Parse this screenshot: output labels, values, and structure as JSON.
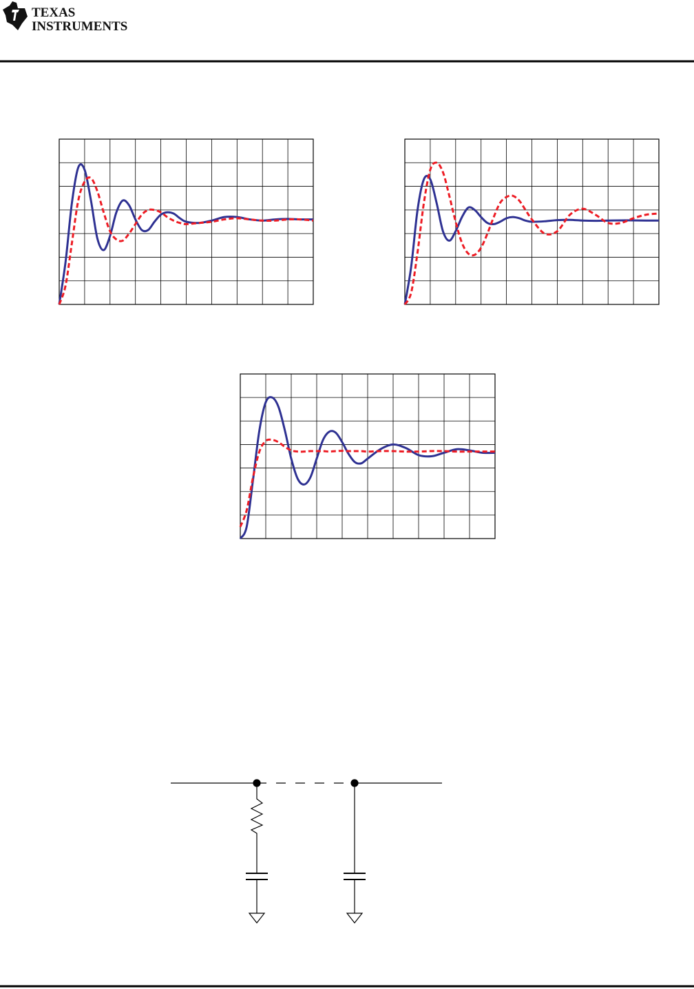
{
  "header": {
    "logo_line1": "TEXAS",
    "logo_line2": "INSTRUMENTS"
  },
  "chart_data": [
    {
      "type": "line",
      "xlim": [
        0,
        10
      ],
      "ylim": [
        0,
        7
      ],
      "xticks": [
        0,
        1,
        2,
        3,
        4,
        5,
        6,
        7,
        8,
        9,
        10
      ],
      "yticks": [
        0,
        1,
        2,
        3,
        4,
        5,
        6,
        7
      ],
      "grid": true,
      "x": [
        0,
        0.25,
        0.5,
        0.75,
        1,
        1.25,
        1.5,
        1.75,
        2,
        2.25,
        2.5,
        2.75,
        3,
        3.25,
        3.5,
        3.75,
        4,
        4.25,
        4.5,
        4.75,
        5,
        5.5,
        6,
        6.5,
        7,
        7.5,
        8,
        8.5,
        9,
        9.5,
        10
      ],
      "series": [
        {
          "color": "#2e3192",
          "style": "solid",
          "values": [
            0,
            1.8,
            4.3,
            5.8,
            5.7,
            4.4,
            2.8,
            2.3,
            2.9,
            3.9,
            4.4,
            4.2,
            3.6,
            3.15,
            3.15,
            3.5,
            3.8,
            3.9,
            3.85,
            3.65,
            3.5,
            3.45,
            3.55,
            3.7,
            3.7,
            3.6,
            3.55,
            3.6,
            3.62,
            3.6,
            3.6
          ]
        },
        {
          "color": "#ed1c24",
          "style": "dashed",
          "values": [
            0,
            0.8,
            2.6,
            4.4,
            5.2,
            5.35,
            4.8,
            3.9,
            3.1,
            2.75,
            2.7,
            3.0,
            3.4,
            3.8,
            4.0,
            4.0,
            3.9,
            3.7,
            3.55,
            3.45,
            3.4,
            3.45,
            3.5,
            3.6,
            3.65,
            3.6,
            3.55,
            3.55,
            3.6,
            3.6,
            3.55
          ]
        }
      ]
    },
    {
      "type": "line",
      "xlim": [
        0,
        10
      ],
      "ylim": [
        0,
        7
      ],
      "xticks": [
        0,
        1,
        2,
        3,
        4,
        5,
        6,
        7,
        8,
        9,
        10
      ],
      "yticks": [
        0,
        1,
        2,
        3,
        4,
        5,
        6,
        7
      ],
      "grid": true,
      "x": [
        0,
        0.25,
        0.5,
        0.75,
        1,
        1.25,
        1.5,
        1.75,
        2,
        2.25,
        2.5,
        2.75,
        3,
        3.25,
        3.5,
        3.75,
        4,
        4.25,
        4.5,
        4.75,
        5,
        5.5,
        6,
        6.5,
        7,
        7.5,
        8,
        8.5,
        9,
        9.5,
        10
      ],
      "series": [
        {
          "color": "#2e3192",
          "style": "solid",
          "values": [
            0,
            1.6,
            4.0,
            5.3,
            5.3,
            4.3,
            3.1,
            2.7,
            3.1,
            3.7,
            4.1,
            4.0,
            3.7,
            3.45,
            3.4,
            3.5,
            3.65,
            3.7,
            3.65,
            3.55,
            3.5,
            3.52,
            3.57,
            3.58,
            3.55,
            3.54,
            3.55,
            3.56,
            3.56,
            3.55,
            3.55
          ]
        },
        {
          "color": "#ed1c24",
          "style": "dashed",
          "values": [
            0,
            0.5,
            2.2,
            4.3,
            5.7,
            6.0,
            5.6,
            4.6,
            3.5,
            2.6,
            2.15,
            2.1,
            2.4,
            3.0,
            3.7,
            4.3,
            4.55,
            4.6,
            4.4,
            4.0,
            3.6,
            3.0,
            3.1,
            3.8,
            4.05,
            3.8,
            3.45,
            3.45,
            3.65,
            3.8,
            3.85
          ]
        }
      ]
    },
    {
      "type": "line",
      "xlim": [
        0,
        10
      ],
      "ylim": [
        0,
        7
      ],
      "xticks": [
        0,
        1,
        2,
        3,
        4,
        5,
        6,
        7,
        8,
        9,
        10
      ],
      "yticks": [
        0,
        1,
        2,
        3,
        4,
        5,
        6,
        7
      ],
      "grid": true,
      "x": [
        0,
        0.25,
        0.5,
        0.75,
        1,
        1.25,
        1.5,
        1.75,
        2,
        2.25,
        2.5,
        2.75,
        3,
        3.25,
        3.5,
        3.75,
        4,
        4.25,
        4.5,
        4.75,
        5,
        5.5,
        6,
        6.5,
        7,
        7.5,
        8,
        8.5,
        9,
        9.5,
        10
      ],
      "series": [
        {
          "color": "#2e3192",
          "style": "solid",
          "values": [
            0,
            0.5,
            2.5,
            4.6,
            5.8,
            6.0,
            5.6,
            4.6,
            3.4,
            2.55,
            2.3,
            2.6,
            3.4,
            4.2,
            4.55,
            4.5,
            4.1,
            3.6,
            3.25,
            3.2,
            3.4,
            3.8,
            4.0,
            3.85,
            3.55,
            3.5,
            3.65,
            3.8,
            3.75,
            3.65,
            3.65
          ]
        },
        {
          "color": "#ed1c24",
          "style": "dashed",
          "values": [
            0.5,
            1.2,
            2.6,
            3.7,
            4.15,
            4.2,
            4.1,
            3.9,
            3.75,
            3.7,
            3.7,
            3.72,
            3.72,
            3.72,
            3.7,
            3.72,
            3.73,
            3.72,
            3.72,
            3.72,
            3.7,
            3.72,
            3.72,
            3.7,
            3.7,
            3.72,
            3.72,
            3.7,
            3.7,
            3.7,
            3.7
          ]
        }
      ]
    }
  ]
}
